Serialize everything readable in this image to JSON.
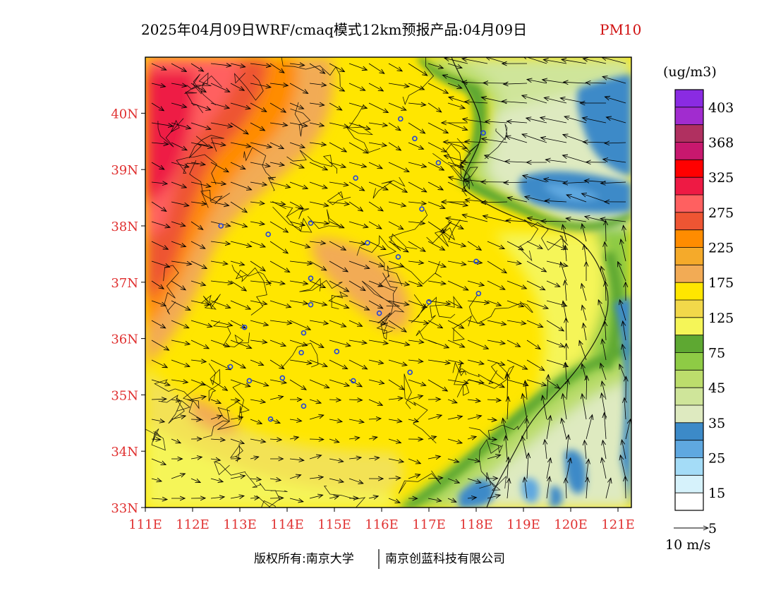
{
  "title": {
    "main": "2025年04月09日WRF/cmaq模式12km预报产品:04月09日",
    "variable": "PM10"
  },
  "axes": {
    "lon_labels": [
      "111E",
      "112E",
      "113E",
      "114E",
      "115E",
      "116E",
      "117E",
      "118E",
      "119E",
      "120E",
      "121E"
    ],
    "lat_labels": [
      "33N",
      "34N",
      "35N",
      "36N",
      "37N",
      "38N",
      "39N",
      "40N"
    ]
  },
  "colorbar": {
    "unit": "(ug/m3)",
    "labels": [
      "403",
      "368",
      "325",
      "275",
      "225",
      "175",
      "125",
      "75",
      "45",
      "35",
      "25",
      "15",
      "5"
    ],
    "colors": [
      "#8a2be2",
      "#a12ccf",
      "#b03060",
      "#c8186e",
      "#ff0000",
      "#ee1a44",
      "#ff6060",
      "#ee5533",
      "#ff8c00",
      "#f5aa2a",
      "#f2ab55",
      "#ffe600",
      "#f2d84a",
      "#f5f558",
      "#5ea832",
      "#8ecb45",
      "#bcdd6c",
      "#cfe59a",
      "#deeac0",
      "#3c8ac8",
      "#5fa8e0",
      "#a4dcf7",
      "#d6f2fb",
      "#ffffff"
    ]
  },
  "wind_reference": {
    "label": "10 m/s"
  },
  "cities": [
    {
      "lon": 112.6,
      "lat": 38.0
    },
    {
      "lon": 113.6,
      "lat": 37.85
    },
    {
      "lon": 114.5,
      "lat": 38.05
    },
    {
      "lon": 115.45,
      "lat": 38.85
    },
    {
      "lon": 115.7,
      "lat": 37.7
    },
    {
      "lon": 116.35,
      "lat": 37.45
    },
    {
      "lon": 116.4,
      "lat": 39.9
    },
    {
      "lon": 116.7,
      "lat": 39.55
    },
    {
      "lon": 117.2,
      "lat": 39.12
    },
    {
      "lon": 116.85,
      "lat": 38.3
    },
    {
      "lon": 118.15,
      "lat": 39.65
    },
    {
      "lon": 114.5,
      "lat": 37.07
    },
    {
      "lon": 114.5,
      "lat": 36.6
    },
    {
      "lon": 115.95,
      "lat": 36.45
    },
    {
      "lon": 117.0,
      "lat": 36.65
    },
    {
      "lon": 118.05,
      "lat": 36.8
    },
    {
      "lon": 118.0,
      "lat": 37.37
    },
    {
      "lon": 113.1,
      "lat": 36.2
    },
    {
      "lon": 114.35,
      "lat": 36.1
    },
    {
      "lon": 114.3,
      "lat": 35.75
    },
    {
      "lon": 115.05,
      "lat": 35.77
    },
    {
      "lon": 112.8,
      "lat": 35.5
    },
    {
      "lon": 113.2,
      "lat": 35.25
    },
    {
      "lon": 113.9,
      "lat": 35.3
    },
    {
      "lon": 115.4,
      "lat": 35.25
    },
    {
      "lon": 116.6,
      "lat": 35.4
    },
    {
      "lon": 114.35,
      "lat": 34.8
    },
    {
      "lon": 113.65,
      "lat": 34.57
    }
  ],
  "footer": {
    "copyright": "版权所有:南京大学",
    "company": "南京创蓝科技有限公司"
  }
}
